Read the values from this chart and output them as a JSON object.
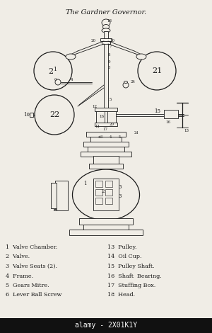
{
  "title": "The Gardner Governor.",
  "background_color": "#f0ede6",
  "text_color": "#1a1a1a",
  "legend_left": [
    "1  Valve Chamber.",
    "2  Valve.",
    "3  Valve Seats (2).",
    "4  Frame.",
    "5  Gears Mitre.",
    "6  Lever Ball Screw"
  ],
  "legend_right": [
    "13  Pulley.",
    "14  Oil Cup.",
    "15  Pulley Shaft.",
    "16  Shaft  Bearing.",
    "17  Stuffing Box.",
    "18  Head."
  ],
  "watermark_text": "alamy - 2X01K1Y",
  "watermark_bg": "#111111",
  "fig_width": 3.0,
  "fig_height": 4.7,
  "dpi": 100
}
